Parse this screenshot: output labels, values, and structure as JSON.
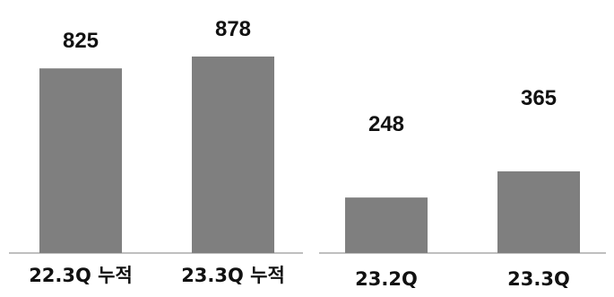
{
  "chart_data": [
    {
      "type": "bar",
      "categories": [
        "22.3Q 누적",
        "23.3Q 누적"
      ],
      "values": [
        825,
        878
      ],
      "data_labels": [
        "825",
        "878"
      ],
      "bar_color": "#7f7f7f",
      "axis_color": "#bfbfbf",
      "grid": false
    },
    {
      "type": "bar",
      "categories": [
        "23.2Q",
        "23.3Q"
      ],
      "values": [
        248,
        365
      ],
      "data_labels": [
        "248",
        "365"
      ],
      "bar_color": "#7f7f7f",
      "axis_color": "#bfbfbf",
      "grid": false
    }
  ]
}
